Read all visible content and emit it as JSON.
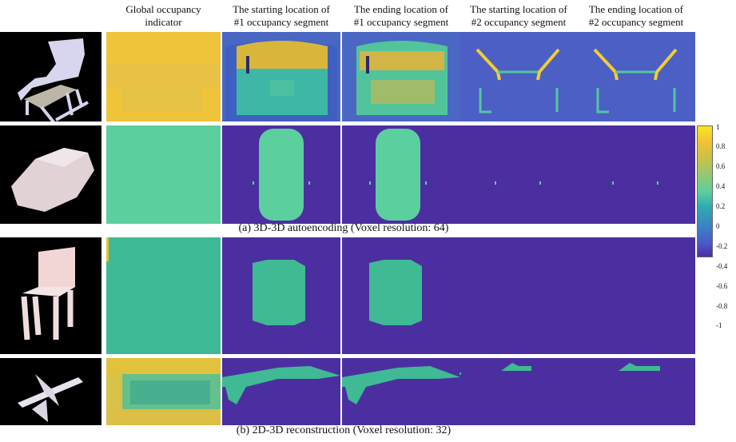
{
  "column_headers": [
    {
      "line1": "",
      "line2": ""
    },
    {
      "line1": "Global occupancy",
      "line2": "indicator"
    },
    {
      "line1": "The starting location of",
      "line2": "#1 occupancy segment"
    },
    {
      "line1": "The ending location of",
      "line2": "#1 occupancy segment"
    },
    {
      "line1": "The starting location of",
      "line2": "#2 occupancy segment"
    },
    {
      "line1": "The ending location of",
      "line2": "#2 occupancy segment"
    }
  ],
  "captions": {
    "a": "(a) 3D-3D autoencoding (Voxel resolution: 64)",
    "b": "(b) 2D-3D reconstruction (Voxel resolution: 32)"
  },
  "colorbar": {
    "ticks": [
      "1",
      "0.8",
      "0.6",
      "0.4",
      "0.2",
      "0",
      "-0.2",
      "-0.4",
      "-0.6",
      "-0.8",
      "-1"
    ],
    "colors": {
      "yellow": "#f9e721",
      "teal": "#5ccf9e",
      "blue": "#4b58c9",
      "purple": "#4b2fa0"
    }
  },
  "rows": [
    {
      "name": "chair-autoencoding"
    },
    {
      "name": "car-autoencoding"
    },
    {
      "name": "chair-reconstruction"
    },
    {
      "name": "airplane-reconstruction"
    }
  ]
}
